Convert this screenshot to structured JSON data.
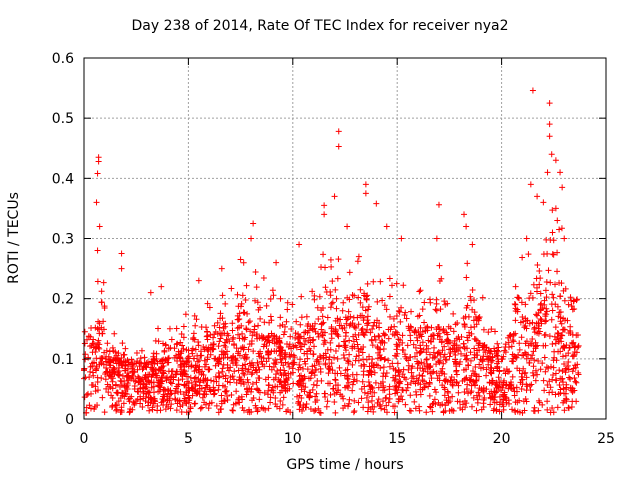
{
  "chart_data": {
    "type": "scatter",
    "title": "Day 238 of 2014, Rate Of TEC Index for receiver nya2",
    "xlabel": "GPS time / hours",
    "ylabel": "ROTI / TECUs",
    "xlim": [
      0,
      25
    ],
    "ylim": [
      0,
      0.6
    ],
    "xticks": [
      0,
      5,
      10,
      15,
      20,
      25
    ],
    "yticks": [
      0,
      0.1,
      0.2,
      0.3,
      0.4,
      0.5,
      0.6
    ],
    "xtick_labels": [
      "0",
      "5",
      "10",
      "15",
      "20",
      "25"
    ],
    "ytick_labels": [
      "0",
      "0.1",
      "0.2",
      "0.3",
      "0.4",
      "0.5",
      "0.6"
    ],
    "grid": true,
    "marker": "+",
    "series_color": "#ff0000",
    "envelope": {
      "x": [
        0,
        0.5,
        0.8,
        1.2,
        2.0,
        3.0,
        3.5,
        4.0,
        5.0,
        6.0,
        7.0,
        8.0,
        9.0,
        10.0,
        11.0,
        11.8,
        12.5,
        13.5,
        14.5,
        15.5,
        16.5,
        17.0,
        18.0,
        18.5,
        19.5,
        20.0,
        21.0,
        21.5,
        22.0,
        22.5,
        23.0,
        23.7
      ],
      "baseline": [
        0.08,
        0.08,
        0.09,
        0.07,
        0.06,
        0.05,
        0.06,
        0.06,
        0.07,
        0.08,
        0.09,
        0.09,
        0.08,
        0.08,
        0.09,
        0.1,
        0.1,
        0.1,
        0.09,
        0.09,
        0.09,
        0.09,
        0.08,
        0.08,
        0.07,
        0.07,
        0.1,
        0.11,
        0.12,
        0.12,
        0.1,
        0.08
      ],
      "upper": [
        0.19,
        0.2,
        0.3,
        0.15,
        0.14,
        0.12,
        0.15,
        0.16,
        0.18,
        0.2,
        0.22,
        0.3,
        0.22,
        0.22,
        0.24,
        0.3,
        0.25,
        0.28,
        0.24,
        0.22,
        0.22,
        0.26,
        0.2,
        0.3,
        0.15,
        0.14,
        0.3,
        0.34,
        0.36,
        0.42,
        0.3,
        0.2
      ]
    },
    "notable_points": [
      {
        "x": 0.7,
        "y": 0.435
      },
      {
        "x": 0.7,
        "y": 0.428
      },
      {
        "x": 0.65,
        "y": 0.408
      },
      {
        "x": 0.6,
        "y": 0.36
      },
      {
        "x": 0.75,
        "y": 0.32
      },
      {
        "x": 0.65,
        "y": 0.28
      },
      {
        "x": 1.8,
        "y": 0.275
      },
      {
        "x": 1.8,
        "y": 0.25
      },
      {
        "x": 3.2,
        "y": 0.21
      },
      {
        "x": 3.7,
        "y": 0.22
      },
      {
        "x": 5.5,
        "y": 0.23
      },
      {
        "x": 6.6,
        "y": 0.25
      },
      {
        "x": 7.5,
        "y": 0.265
      },
      {
        "x": 8.1,
        "y": 0.325
      },
      {
        "x": 8.0,
        "y": 0.3
      },
      {
        "x": 9.2,
        "y": 0.26
      },
      {
        "x": 10.3,
        "y": 0.29
      },
      {
        "x": 11.5,
        "y": 0.355
      },
      {
        "x": 11.5,
        "y": 0.34
      },
      {
        "x": 12.2,
        "y": 0.478
      },
      {
        "x": 12.2,
        "y": 0.453
      },
      {
        "x": 12.0,
        "y": 0.37
      },
      {
        "x": 12.6,
        "y": 0.32
      },
      {
        "x": 13.5,
        "y": 0.39
      },
      {
        "x": 13.5,
        "y": 0.375
      },
      {
        "x": 14.0,
        "y": 0.358
      },
      {
        "x": 14.5,
        "y": 0.32
      },
      {
        "x": 15.2,
        "y": 0.3
      },
      {
        "x": 17.0,
        "y": 0.356
      },
      {
        "x": 16.9,
        "y": 0.3
      },
      {
        "x": 18.2,
        "y": 0.34
      },
      {
        "x": 18.3,
        "y": 0.32
      },
      {
        "x": 18.6,
        "y": 0.29
      },
      {
        "x": 21.2,
        "y": 0.3
      },
      {
        "x": 21.5,
        "y": 0.546
      },
      {
        "x": 21.4,
        "y": 0.39
      },
      {
        "x": 21.7,
        "y": 0.37
      },
      {
        "x": 22.3,
        "y": 0.525
      },
      {
        "x": 22.3,
        "y": 0.49
      },
      {
        "x": 22.3,
        "y": 0.47
      },
      {
        "x": 22.4,
        "y": 0.44
      },
      {
        "x": 22.2,
        "y": 0.41
      },
      {
        "x": 22.0,
        "y": 0.36
      },
      {
        "x": 22.6,
        "y": 0.43
      },
      {
        "x": 22.8,
        "y": 0.41
      },
      {
        "x": 22.9,
        "y": 0.385
      },
      {
        "x": 23.0,
        "y": 0.3
      },
      {
        "x": 22.6,
        "y": 0.35
      }
    ]
  }
}
